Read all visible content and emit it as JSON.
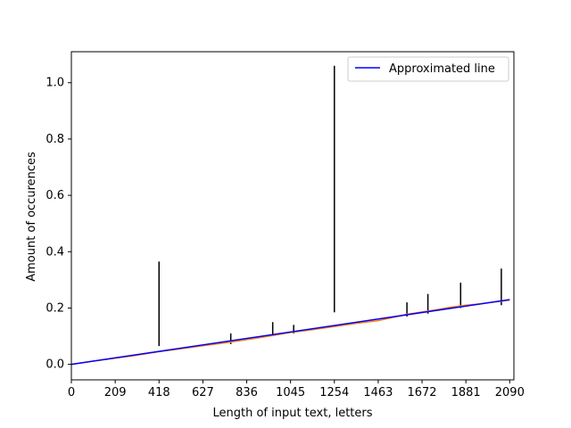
{
  "chart_data": {
    "type": "line",
    "title": "",
    "xlabel": "Length of input text, letters",
    "ylabel": "Amount of occurences",
    "xlim": [
      0,
      2110
    ],
    "ylim": [
      -0.055,
      1.11
    ],
    "x_ticks": [
      "0",
      "209",
      "418",
      "627",
      "836",
      "1045",
      "1254",
      "1463",
      "1672",
      "1881",
      "2090"
    ],
    "x_tick_values": [
      0,
      209,
      418,
      627,
      836,
      1045,
      1254,
      1463,
      1672,
      1881,
      2090
    ],
    "y_ticks": [
      "0.0",
      "0.2",
      "0.4",
      "0.6",
      "0.8",
      "1.0"
    ],
    "y_tick_values": [
      0.0,
      0.2,
      0.4,
      0.6,
      0.8,
      1.0
    ],
    "grid": false,
    "legend_position": "top-right",
    "series": [
      {
        "name": "Approximated line",
        "color": "#0000ff",
        "x": [
          0,
          2090
        ],
        "y": [
          0.0,
          0.23
        ]
      }
    ],
    "measured": {
      "color": "#ff7f0e",
      "x": [
        0,
        100,
        200,
        300,
        418,
        500,
        627,
        700,
        760,
        836,
        900,
        980,
        1045,
        1150,
        1254,
        1350,
        1463,
        1560,
        1600,
        1672,
        1750,
        1810,
        1881,
        1950,
        2000,
        2090
      ],
      "y": [
        0.0,
        0.011,
        0.021,
        0.031,
        0.045,
        0.053,
        0.066,
        0.073,
        0.079,
        0.088,
        0.095,
        0.105,
        0.113,
        0.123,
        0.134,
        0.145,
        0.155,
        0.171,
        0.178,
        0.186,
        0.195,
        0.203,
        0.21,
        0.215,
        0.22,
        0.228
      ]
    },
    "error_bars": [
      {
        "x": 418,
        "low": 0.065,
        "high": 0.365
      },
      {
        "x": 1254,
        "low": 0.185,
        "high": 1.06
      },
      {
        "x": 760,
        "low": 0.072,
        "high": 0.11
      },
      {
        "x": 960,
        "low": 0.1,
        "high": 0.15
      },
      {
        "x": 1060,
        "low": 0.11,
        "high": 0.14
      },
      {
        "x": 1600,
        "low": 0.17,
        "high": 0.22
      },
      {
        "x": 1700,
        "low": 0.18,
        "high": 0.25
      },
      {
        "x": 1856,
        "low": 0.2,
        "high": 0.29
      },
      {
        "x": 2050,
        "low": 0.21,
        "high": 0.34
      }
    ]
  }
}
